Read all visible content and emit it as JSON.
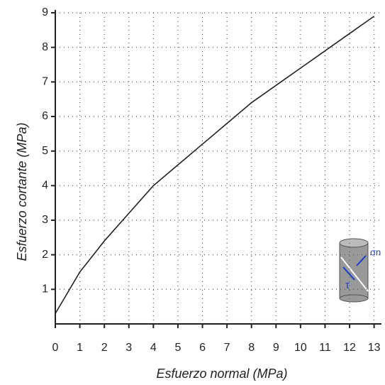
{
  "chart_data": {
    "type": "line",
    "x_label": "Esfuerzo normal (MPa)",
    "y_label": "Esfuerzo cortante (MPa)",
    "x": [
      0,
      1,
      2,
      3,
      4,
      5,
      6,
      7,
      8,
      9,
      10,
      11,
      12,
      13
    ],
    "series": [
      {
        "color": "#222222",
        "values": [
          0.3,
          1.5,
          2.4,
          3.2,
          4.0,
          4.6,
          5.2,
          5.8,
          6.4,
          6.9,
          7.4,
          7.9,
          8.4,
          8.9
        ]
      }
    ],
    "xlim": [
      0,
      13.3
    ],
    "ylim": [
      0,
      9
    ],
    "xticks": [
      0,
      1,
      2,
      3,
      4,
      5,
      6,
      7,
      8,
      9,
      10,
      11,
      12,
      13
    ],
    "yticks": [
      1,
      2,
      3,
      4,
      5,
      6,
      7,
      8,
      9
    ],
    "grid": true,
    "annotations": [
      "σn",
      "τ"
    ]
  }
}
